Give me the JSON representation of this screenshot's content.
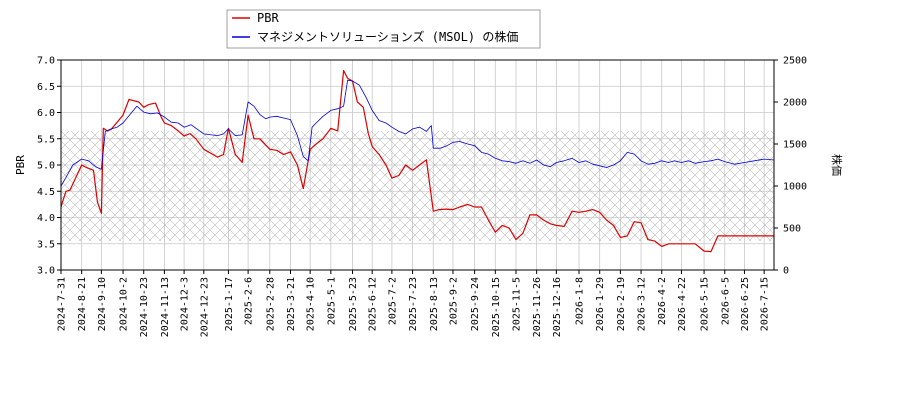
{
  "chart_data": {
    "type": "line",
    "title": "",
    "ylabel_left": "PBR",
    "ylabel_right": "株価",
    "ylim_left": [
      3.0,
      7.0
    ],
    "ylim_right": [
      0,
      2500
    ],
    "yticks_left": [
      "3.0",
      "3.5",
      "4.0",
      "4.5",
      "5.0",
      "5.5",
      "6.0",
      "6.5",
      "7.0"
    ],
    "yticks_right": [
      "0",
      "500",
      "1000",
      "1500",
      "2000",
      "2500"
    ],
    "hatch_band_pbr": [
      3.55,
      5.65
    ],
    "grid": true,
    "legend_position": "top-center",
    "x_range": [
      "2024-07-31",
      "2026-07-25"
    ],
    "xtick_labels": [
      "2024-7-31",
      "2024-8-21",
      "2024-9-10",
      "2024-10-2",
      "2024-10-23",
      "2024-11-13",
      "2024-12-3",
      "2024-12-23",
      "2025-1-17",
      "2025-2-6",
      "2025-2-28",
      "2025-3-21",
      "2025-4-10",
      "2025-5-1",
      "2025-5-23",
      "2025-6-12",
      "2025-7-2",
      "2025-7-23",
      "2025-8-13",
      "2025-9-2",
      "2025-9-24",
      "2025-10-15",
      "2025-11-5",
      "2025-11-26",
      "2025-12-16",
      "2026-1-8",
      "2026-1-29",
      "2026-2-19",
      "2026-3-12",
      "2026-4-2",
      "2026-4-22",
      "2026-5-15",
      "2026-6-5",
      "2026-6-25",
      "2026-7-15"
    ],
    "colors": {
      "pbr": "#dd0000",
      "price": "#0000dd"
    },
    "series": [
      {
        "name": "PBR",
        "axis": "left",
        "x": [
          "2024-07-31",
          "2024-08-05",
          "2024-08-09",
          "2024-08-21",
          "2024-08-26",
          "2024-09-02",
          "2024-09-06",
          "2024-09-10",
          "2024-09-12",
          "2024-09-16",
          "2024-09-20",
          "2024-10-02",
          "2024-10-08",
          "2024-10-14",
          "2024-10-18",
          "2024-10-23",
          "2024-10-28",
          "2024-11-04",
          "2024-11-10",
          "2024-11-13",
          "2024-11-20",
          "2024-11-27",
          "2024-12-03",
          "2024-12-09",
          "2024-12-15",
          "2024-12-23",
          "2025-01-06",
          "2025-01-12",
          "2025-01-17",
          "2025-01-24",
          "2025-01-31",
          "2025-02-06",
          "2025-02-12",
          "2025-02-18",
          "2025-02-28",
          "2025-03-07",
          "2025-03-14",
          "2025-03-21",
          "2025-03-28",
          "2025-04-03",
          "2025-04-10",
          "2025-04-16",
          "2025-04-23",
          "2025-05-01",
          "2025-05-08",
          "2025-05-14",
          "2025-05-18",
          "2025-05-23",
          "2025-05-28",
          "2025-06-03",
          "2025-06-08",
          "2025-06-12",
          "2025-06-19",
          "2025-06-26",
          "2025-07-02",
          "2025-07-09",
          "2025-07-16",
          "2025-07-23",
          "2025-07-30",
          "2025-08-06",
          "2025-08-13",
          "2025-08-19",
          "2025-08-26",
          "2025-09-02",
          "2025-09-09",
          "2025-09-17",
          "2025-09-24",
          "2025-10-01",
          "2025-10-08",
          "2025-10-15",
          "2025-10-22",
          "2025-10-29",
          "2025-11-05",
          "2025-11-12",
          "2025-11-19",
          "2025-11-26",
          "2025-12-03",
          "2025-12-10",
          "2025-12-16",
          "2025-12-24",
          "2026-01-01",
          "2026-01-08",
          "2026-01-15",
          "2026-01-22",
          "2026-01-29",
          "2026-02-05",
          "2026-02-12",
          "2026-02-19",
          "2026-02-26",
          "2026-03-05",
          "2026-03-12",
          "2026-03-19",
          "2026-03-26",
          "2026-04-02",
          "2026-04-09",
          "2026-04-15",
          "2026-04-22",
          "2026-04-29",
          "2026-05-06",
          "2026-05-15",
          "2026-05-22",
          "2026-05-29",
          "2026-06-05",
          "2026-06-15",
          "2026-06-25",
          "2026-07-05",
          "2026-07-15",
          "2026-07-25"
        ],
        "values": [
          4.2,
          4.5,
          4.52,
          5.0,
          4.95,
          4.9,
          4.3,
          4.08,
          5.7,
          5.65,
          5.68,
          5.95,
          6.25,
          6.22,
          6.2,
          6.1,
          6.15,
          6.18,
          5.9,
          5.8,
          5.75,
          5.65,
          5.55,
          5.6,
          5.5,
          5.3,
          5.15,
          5.2,
          5.7,
          5.2,
          5.05,
          5.95,
          5.5,
          5.5,
          5.3,
          5.28,
          5.2,
          5.25,
          5.0,
          4.55,
          5.3,
          5.4,
          5.5,
          5.7,
          5.65,
          6.8,
          6.65,
          6.6,
          6.2,
          6.1,
          5.6,
          5.35,
          5.2,
          5.0,
          4.75,
          4.8,
          5.0,
          4.9,
          5.0,
          5.1,
          4.12,
          4.15,
          4.16,
          4.15,
          4.2,
          4.25,
          4.2,
          4.2,
          3.95,
          3.72,
          3.85,
          3.8,
          3.58,
          3.7,
          4.05,
          4.05,
          3.95,
          3.88,
          3.85,
          3.83,
          4.12,
          4.1,
          4.12,
          4.15,
          4.1,
          3.95,
          3.85,
          3.62,
          3.65,
          3.92,
          3.9,
          3.58,
          3.55,
          3.45,
          3.5,
          3.5,
          3.5,
          3.5,
          3.5,
          3.36,
          3.35,
          3.65,
          3.65,
          3.65,
          3.65,
          3.65,
          3.65,
          3.65
        ]
      },
      {
        "name": "マネジメントソリューションズ (MSOL) の株価",
        "axis": "right",
        "x": [
          "2024-07-31",
          "2024-08-05",
          "2024-08-12",
          "2024-08-21",
          "2024-08-28",
          "2024-09-04",
          "2024-09-10",
          "2024-09-14",
          "2024-09-20",
          "2024-09-26",
          "2024-10-02",
          "2024-10-09",
          "2024-10-16",
          "2024-10-23",
          "2024-10-30",
          "2024-11-06",
          "2024-11-13",
          "2024-11-20",
          "2024-11-27",
          "2024-12-03",
          "2024-12-10",
          "2024-12-16",
          "2024-12-23",
          "2025-01-06",
          "2025-01-12",
          "2025-01-17",
          "2025-01-24",
          "2025-01-31",
          "2025-02-06",
          "2025-02-12",
          "2025-02-18",
          "2025-02-24",
          "2025-02-28",
          "2025-03-07",
          "2025-03-14",
          "2025-03-21",
          "2025-03-28",
          "2025-04-03",
          "2025-04-08",
          "2025-04-12",
          "2025-04-16",
          "2025-04-23",
          "2025-05-01",
          "2025-05-08",
          "2025-05-14",
          "2025-05-18",
          "2025-05-23",
          "2025-05-30",
          "2025-06-06",
          "2025-06-12",
          "2025-06-19",
          "2025-06-26",
          "2025-07-02",
          "2025-07-09",
          "2025-07-16",
          "2025-07-23",
          "2025-07-30",
          "2025-08-06",
          "2025-08-11",
          "2025-08-13",
          "2025-08-20",
          "2025-08-27",
          "2025-09-02",
          "2025-09-09",
          "2025-09-17",
          "2025-09-24",
          "2025-10-01",
          "2025-10-08",
          "2025-10-15",
          "2025-10-22",
          "2025-10-29",
          "2025-11-05",
          "2025-11-12",
          "2025-11-19",
          "2025-11-26",
          "2025-12-03",
          "2025-12-10",
          "2025-12-16",
          "2025-12-24",
          "2026-01-01",
          "2026-01-08",
          "2026-01-15",
          "2026-01-22",
          "2026-01-29",
          "2026-02-05",
          "2026-02-12",
          "2026-02-19",
          "2026-02-26",
          "2026-03-05",
          "2026-03-12",
          "2026-03-19",
          "2026-03-26",
          "2026-04-02",
          "2026-04-09",
          "2026-04-15",
          "2026-04-22",
          "2026-04-29",
          "2026-05-06",
          "2026-05-15",
          "2026-05-22",
          "2026-05-29",
          "2026-06-05",
          "2026-06-15",
          "2026-06-25",
          "2026-07-05",
          "2026-07-15",
          "2026-07-25"
        ],
        "values": [
          1000,
          1100,
          1250,
          1320,
          1300,
          1230,
          1200,
          1650,
          1680,
          1700,
          1750,
          1850,
          1950,
          1880,
          1860,
          1870,
          1820,
          1760,
          1750,
          1700,
          1730,
          1680,
          1620,
          1600,
          1620,
          1680,
          1600,
          1610,
          2000,
          1950,
          1850,
          1800,
          1820,
          1830,
          1810,
          1790,
          1600,
          1350,
          1300,
          1700,
          1750,
          1830,
          1900,
          1920,
          1950,
          2260,
          2250,
          2200,
          2050,
          1900,
          1780,
          1750,
          1700,
          1650,
          1620,
          1680,
          1700,
          1650,
          1720,
          1450,
          1450,
          1480,
          1520,
          1530,
          1500,
          1480,
          1400,
          1380,
          1330,
          1300,
          1290,
          1270,
          1300,
          1270,
          1310,
          1250,
          1230,
          1280,
          1300,
          1330,
          1280,
          1300,
          1260,
          1240,
          1220,
          1250,
          1300,
          1400,
          1380,
          1300,
          1260,
          1270,
          1300,
          1280,
          1300,
          1280,
          1300,
          1270,
          1290,
          1300,
          1320,
          1290,
          1260,
          1280,
          1300,
          1320,
          1310
        ]
      }
    ]
  }
}
